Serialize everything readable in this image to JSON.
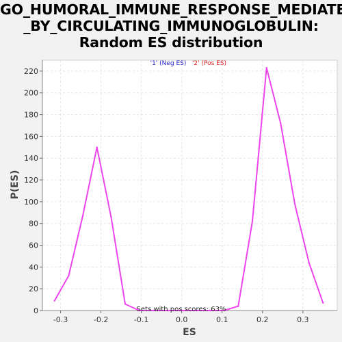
{
  "title_lines": [
    "GO_HUMORAL_IMMUNE_RESPONSE_MEDIATED",
    "_BY_CIRCULATING_IMMUNOGLOBULIN:",
    "Random ES distribution"
  ],
  "chart_data": {
    "type": "line",
    "xlabel": "ES",
    "ylabel": "P(ES)",
    "xlim": [
      -0.345,
      0.385
    ],
    "ylim": [
      0,
      230
    ],
    "xticks": [
      -0.3,
      -0.2,
      -0.1,
      0.0,
      0.1,
      0.2,
      0.3
    ],
    "xtick_labels": [
      "-0.3",
      "-0.2",
      "-0.1",
      "0.0",
      "0.1",
      "0.2",
      "0.3"
    ],
    "yticks": [
      0,
      20,
      40,
      60,
      80,
      100,
      120,
      140,
      160,
      180,
      200,
      220
    ],
    "ytick_labels": [
      "0",
      "20",
      "40",
      "60",
      "80",
      "100",
      "120",
      "140",
      "160",
      "180",
      "200",
      "220"
    ],
    "grid": true,
    "legend": {
      "placement": "top-center",
      "entries": [
        {
          "label": "'1' (Neg ES)",
          "color": "#2222cc"
        },
        {
          "label": "'2' (Pos ES)",
          "color": "#dd2222"
        }
      ]
    },
    "annotation": "Sets with pos scores: 63%",
    "series": [
      {
        "color": "#ee44ee",
        "x": [
          -0.315,
          -0.28,
          -0.245,
          -0.21,
          -0.175,
          -0.14,
          -0.105,
          -0.07,
          -0.035,
          0.0,
          0.035,
          0.07,
          0.105,
          0.14,
          0.175,
          0.21,
          0.245,
          0.28,
          0.315,
          0.35
        ],
        "y": [
          9,
          32,
          87,
          150,
          86,
          6,
          0,
          0,
          0,
          0,
          0,
          0,
          0,
          4,
          82,
          223,
          172,
          98,
          44,
          7
        ]
      }
    ]
  }
}
